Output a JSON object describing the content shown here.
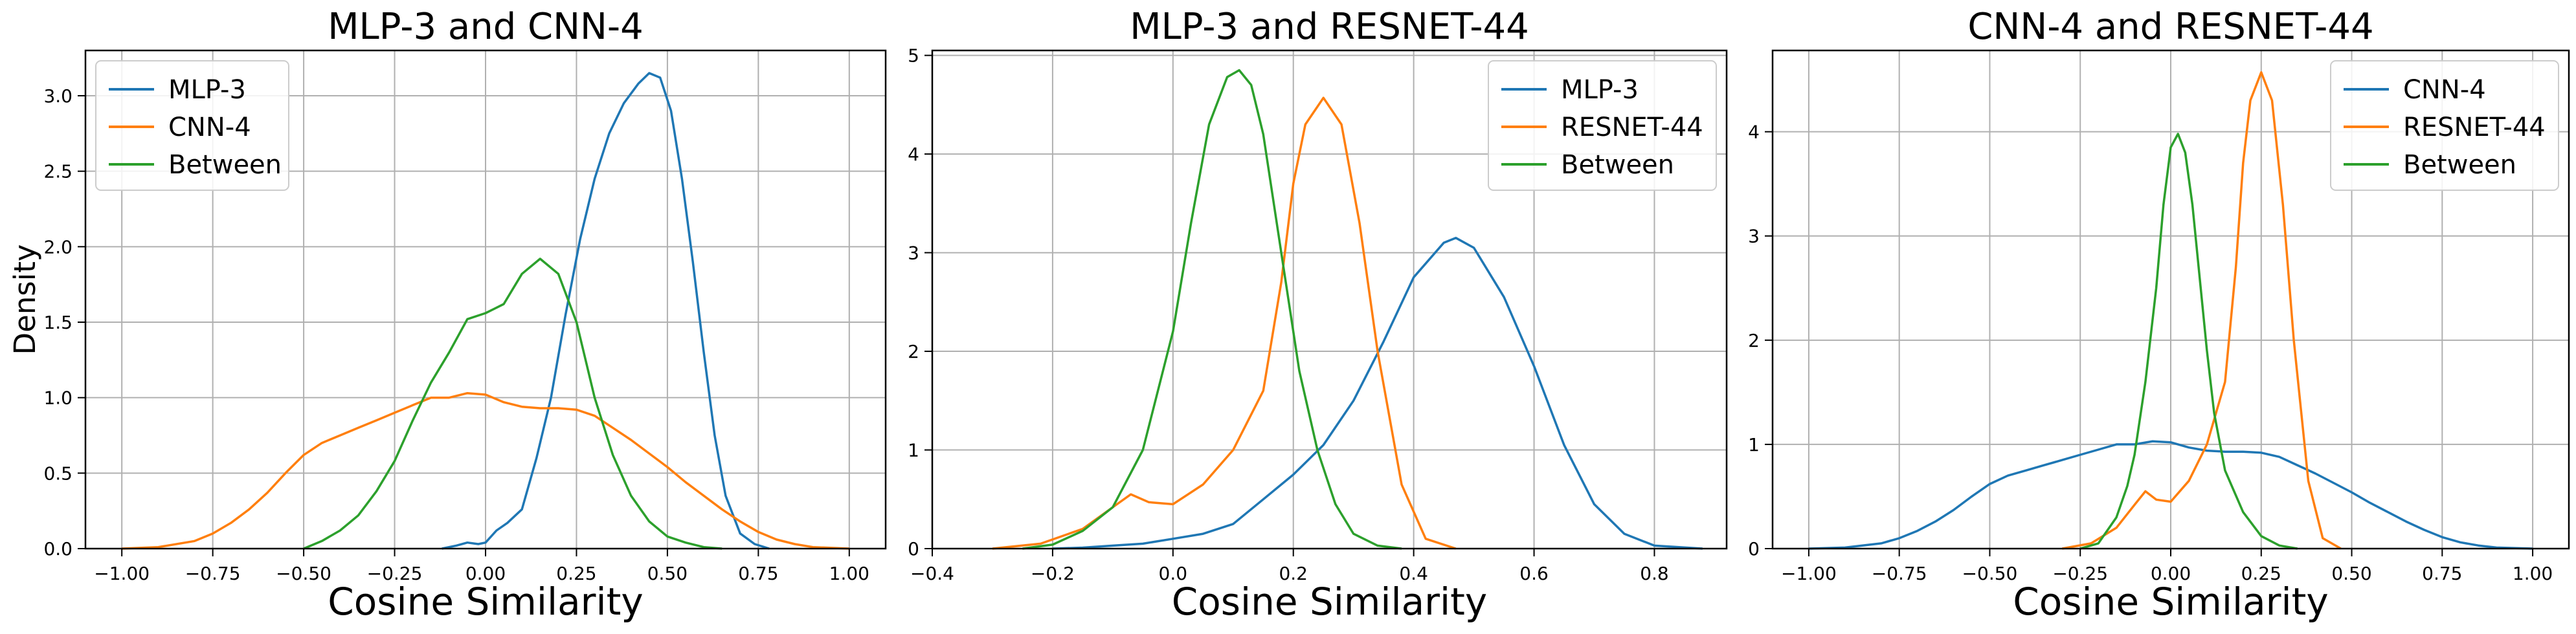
{
  "chart_data": [
    {
      "type": "line",
      "title": "MLP-3 and CNN-4",
      "xlabel": "Cosine Similarity",
      "ylabel": "Density",
      "xlim": [
        -1.1,
        1.1
      ],
      "ylim": [
        0,
        3.3
      ],
      "xticks": [
        -1.0,
        -0.75,
        -0.5,
        -0.25,
        0.0,
        0.25,
        0.5,
        0.75,
        1.0
      ],
      "xtick_labels": [
        "−1.00",
        "−0.75",
        "−0.50",
        "−0.25",
        "0.00",
        "0.25",
        "0.50",
        "0.75",
        "1.00"
      ],
      "yticks": [
        0,
        0.5,
        1.0,
        1.5,
        2.0,
        2.5,
        3.0
      ],
      "ytick_labels": [
        "0.0",
        "0.5",
        "1.0",
        "1.5",
        "2.0",
        "2.5",
        "3.0"
      ],
      "grid": true,
      "legend_position": "top-left",
      "series": [
        {
          "name": "MLP-3",
          "color": "#1f77b4",
          "x": [
            -0.12,
            -0.08,
            -0.05,
            -0.02,
            0.0,
            0.03,
            0.06,
            0.1,
            0.14,
            0.18,
            0.22,
            0.26,
            0.3,
            0.34,
            0.38,
            0.42,
            0.45,
            0.48,
            0.51,
            0.54,
            0.57,
            0.6,
            0.63,
            0.66,
            0.7,
            0.74,
            0.78
          ],
          "y": [
            0,
            0.02,
            0.04,
            0.03,
            0.04,
            0.12,
            0.17,
            0.26,
            0.6,
            1.0,
            1.55,
            2.05,
            2.45,
            2.75,
            2.95,
            3.08,
            3.15,
            3.12,
            2.9,
            2.45,
            1.9,
            1.3,
            0.75,
            0.35,
            0.1,
            0.03,
            0
          ]
        },
        {
          "name": "CNN-4",
          "color": "#ff7f0e",
          "x": [
            -1.0,
            -0.9,
            -0.8,
            -0.75,
            -0.7,
            -0.65,
            -0.6,
            -0.55,
            -0.5,
            -0.45,
            -0.4,
            -0.35,
            -0.3,
            -0.25,
            -0.2,
            -0.15,
            -0.1,
            -0.05,
            0.0,
            0.05,
            0.1,
            0.15,
            0.2,
            0.25,
            0.3,
            0.35,
            0.4,
            0.45,
            0.5,
            0.55,
            0.6,
            0.65,
            0.7,
            0.75,
            0.8,
            0.85,
            0.9,
            1.0
          ],
          "y": [
            0,
            0.01,
            0.05,
            0.1,
            0.17,
            0.26,
            0.37,
            0.5,
            0.62,
            0.7,
            0.75,
            0.8,
            0.85,
            0.9,
            0.95,
            1.0,
            1.0,
            1.03,
            1.02,
            0.97,
            0.94,
            0.93,
            0.93,
            0.92,
            0.88,
            0.8,
            0.72,
            0.63,
            0.54,
            0.44,
            0.35,
            0.26,
            0.18,
            0.11,
            0.06,
            0.03,
            0.01,
            0
          ]
        },
        {
          "name": "Between",
          "color": "#2ca02c",
          "x": [
            -0.5,
            -0.45,
            -0.4,
            -0.35,
            -0.3,
            -0.25,
            -0.2,
            -0.15,
            -0.1,
            -0.05,
            0.0,
            0.05,
            0.1,
            0.15,
            0.2,
            0.25,
            0.3,
            0.35,
            0.4,
            0.45,
            0.5,
            0.55,
            0.6,
            0.65
          ],
          "y": [
            0,
            0.05,
            0.12,
            0.22,
            0.38,
            0.58,
            0.85,
            1.1,
            1.3,
            1.52,
            1.56,
            1.62,
            1.82,
            1.92,
            1.82,
            1.5,
            1.0,
            0.62,
            0.35,
            0.18,
            0.08,
            0.04,
            0.01,
            0
          ]
        }
      ]
    },
    {
      "type": "line",
      "title": "MLP-3 and RESNET-44",
      "xlabel": "Cosine Similarity",
      "ylabel": "",
      "xlim": [
        -0.4,
        0.92
      ],
      "ylim": [
        0,
        5.05
      ],
      "xticks": [
        -0.4,
        -0.2,
        0.0,
        0.2,
        0.4,
        0.6,
        0.8
      ],
      "xtick_labels": [
        "−0.4",
        "−0.2",
        "0.0",
        "0.2",
        "0.4",
        "0.6",
        "0.8"
      ],
      "yticks": [
        0,
        1,
        2,
        3,
        4,
        5
      ],
      "ytick_labels": [
        "0",
        "1",
        "2",
        "3",
        "4",
        "5"
      ],
      "grid": true,
      "legend_position": "top-right",
      "series": [
        {
          "name": "MLP-3",
          "color": "#1f77b4",
          "x": [
            -0.2,
            -0.15,
            -0.1,
            -0.05,
            0.0,
            0.05,
            0.1,
            0.15,
            0.2,
            0.25,
            0.3,
            0.35,
            0.4,
            0.45,
            0.47,
            0.5,
            0.55,
            0.6,
            0.65,
            0.7,
            0.75,
            0.8,
            0.88
          ],
          "y": [
            0,
            0.01,
            0.03,
            0.05,
            0.1,
            0.15,
            0.25,
            0.5,
            0.75,
            1.05,
            1.5,
            2.1,
            2.75,
            3.1,
            3.15,
            3.05,
            2.55,
            1.85,
            1.05,
            0.45,
            0.15,
            0.03,
            0
          ]
        },
        {
          "name": "RESNET-44",
          "color": "#ff7f0e",
          "x": [
            -0.3,
            -0.22,
            -0.15,
            -0.1,
            -0.07,
            -0.04,
            0.0,
            0.05,
            0.1,
            0.15,
            0.18,
            0.2,
            0.22,
            0.25,
            0.28,
            0.31,
            0.34,
            0.38,
            0.42,
            0.47
          ],
          "y": [
            0,
            0.05,
            0.2,
            0.42,
            0.55,
            0.47,
            0.45,
            0.65,
            1.0,
            1.6,
            2.7,
            3.7,
            4.3,
            4.57,
            4.3,
            3.3,
            2.0,
            0.65,
            0.1,
            0
          ]
        },
        {
          "name": "Between",
          "color": "#2ca02c",
          "x": [
            -0.25,
            -0.2,
            -0.15,
            -0.1,
            -0.05,
            0.0,
            0.03,
            0.06,
            0.09,
            0.11,
            0.13,
            0.15,
            0.18,
            0.21,
            0.24,
            0.27,
            0.3,
            0.34,
            0.38
          ],
          "y": [
            0,
            0.04,
            0.18,
            0.42,
            1.0,
            2.2,
            3.3,
            4.3,
            4.78,
            4.85,
            4.7,
            4.2,
            3.0,
            1.8,
            1.0,
            0.45,
            0.15,
            0.03,
            0
          ]
        }
      ]
    },
    {
      "type": "line",
      "title": "CNN-4 and RESNET-44",
      "xlabel": "Cosine Similarity",
      "ylabel": "",
      "xlim": [
        -1.1,
        1.1
      ],
      "ylim": [
        0,
        4.78
      ],
      "xticks": [
        -1.0,
        -0.75,
        -0.5,
        -0.25,
        0.0,
        0.25,
        0.5,
        0.75,
        1.0
      ],
      "xtick_labels": [
        "−1.00",
        "−0.75",
        "−0.50",
        "−0.25",
        "0.00",
        "0.25",
        "0.50",
        "0.75",
        "1.00"
      ],
      "yticks": [
        0,
        1,
        2,
        3,
        4
      ],
      "ytick_labels": [
        "0",
        "1",
        "2",
        "3",
        "4"
      ],
      "grid": true,
      "legend_position": "top-right",
      "series": [
        {
          "name": "CNN-4",
          "color": "#1f77b4",
          "x": [
            -1.0,
            -0.9,
            -0.8,
            -0.75,
            -0.7,
            -0.65,
            -0.6,
            -0.55,
            -0.5,
            -0.45,
            -0.4,
            -0.35,
            -0.3,
            -0.25,
            -0.2,
            -0.15,
            -0.1,
            -0.05,
            0.0,
            0.05,
            0.1,
            0.15,
            0.2,
            0.25,
            0.3,
            0.35,
            0.4,
            0.45,
            0.5,
            0.55,
            0.6,
            0.65,
            0.7,
            0.75,
            0.8,
            0.85,
            0.9,
            1.0
          ],
          "y": [
            0,
            0.01,
            0.05,
            0.1,
            0.17,
            0.26,
            0.37,
            0.5,
            0.62,
            0.7,
            0.75,
            0.8,
            0.85,
            0.9,
            0.95,
            1.0,
            1.0,
            1.03,
            1.02,
            0.97,
            0.94,
            0.93,
            0.93,
            0.92,
            0.88,
            0.8,
            0.72,
            0.63,
            0.54,
            0.44,
            0.35,
            0.26,
            0.18,
            0.11,
            0.06,
            0.03,
            0.01,
            0
          ]
        },
        {
          "name": "RESNET-44",
          "color": "#ff7f0e",
          "x": [
            -0.3,
            -0.22,
            -0.15,
            -0.1,
            -0.07,
            -0.04,
            0.0,
            0.05,
            0.1,
            0.15,
            0.18,
            0.2,
            0.22,
            0.25,
            0.28,
            0.31,
            0.34,
            0.38,
            0.42,
            0.47
          ],
          "y": [
            0,
            0.05,
            0.2,
            0.42,
            0.55,
            0.47,
            0.45,
            0.65,
            1.0,
            1.6,
            2.7,
            3.7,
            4.3,
            4.57,
            4.3,
            3.3,
            2.0,
            0.65,
            0.1,
            0
          ]
        },
        {
          "name": "Between",
          "color": "#2ca02c",
          "x": [
            -0.25,
            -0.2,
            -0.15,
            -0.12,
            -0.1,
            -0.07,
            -0.04,
            -0.02,
            0.0,
            0.02,
            0.04,
            0.06,
            0.08,
            0.1,
            0.12,
            0.15,
            0.2,
            0.25,
            0.3,
            0.35
          ],
          "y": [
            0,
            0.05,
            0.3,
            0.6,
            0.9,
            1.6,
            2.5,
            3.3,
            3.85,
            3.98,
            3.8,
            3.3,
            2.6,
            1.9,
            1.3,
            0.75,
            0.35,
            0.12,
            0.03,
            0
          ]
        }
      ]
    }
  ]
}
